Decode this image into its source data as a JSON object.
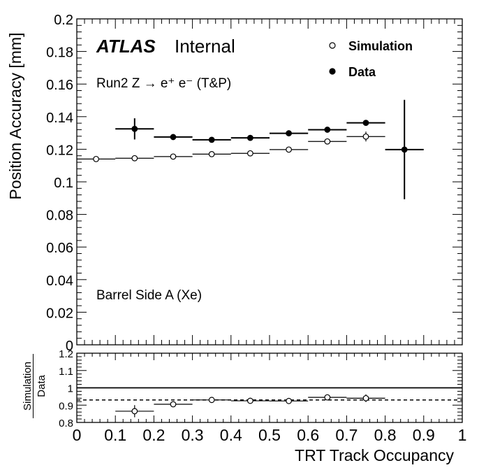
{
  "chart_data": [
    {
      "type": "scatter",
      "panel": "main",
      "xlim": [
        0,
        1
      ],
      "ylim": [
        0,
        0.2
      ],
      "ylabel": "Position Accuracy [mm]",
      "y_ticks": [
        "0",
        "0.02",
        "0.04",
        "0.06",
        "0.08",
        "0.1",
        "0.12",
        "0.14",
        "0.16",
        "0.18",
        "0.2"
      ],
      "labels": {
        "atlas": "ATLAS",
        "internal": "Internal",
        "process": "Run2 Z → e⁺ e⁻ (T&P)",
        "region": "Barrel Side A (Xe)"
      },
      "legend_position": "top-right",
      "series": [
        {
          "name": "Simulation",
          "marker": "open-circle",
          "x": [
            0.05,
            0.15,
            0.25,
            0.35,
            0.45,
            0.55,
            0.65,
            0.75
          ],
          "xerr": [
            0.05,
            0.05,
            0.05,
            0.05,
            0.05,
            0.05,
            0.05,
            0.05
          ],
          "y": [
            0.114,
            0.1145,
            0.1155,
            0.117,
            0.1175,
            0.1198,
            0.1248,
            0.1278
          ],
          "yerr": [
            0.0006,
            0.0006,
            0.0006,
            0.0006,
            0.0006,
            0.0006,
            0.0008,
            0.003
          ]
        },
        {
          "name": "Data",
          "marker": "filled-circle",
          "x": [
            0.15,
            0.25,
            0.35,
            0.45,
            0.55,
            0.65,
            0.75,
            0.85
          ],
          "xerr": [
            0.05,
            0.05,
            0.05,
            0.05,
            0.05,
            0.05,
            0.05,
            0.05
          ],
          "y": [
            0.1325,
            0.1275,
            0.1258,
            0.127,
            0.1298,
            0.132,
            0.1362,
            0.1198
          ],
          "yerr": [
            0.0065,
            0.001,
            0.0008,
            0.0008,
            0.0008,
            0.001,
            0.0015,
            0.0305
          ]
        }
      ]
    },
    {
      "type": "scatter",
      "panel": "ratio",
      "xlim": [
        0,
        1
      ],
      "ylim": [
        0.8,
        1.2
      ],
      "ylabel_numerator": "Simulation",
      "ylabel_denominator": "Data",
      "xlabel": "TRT Track Occupancy",
      "x_ticks": [
        "0",
        "0.1",
        "0.2",
        "0.3",
        "0.4",
        "0.5",
        "0.6",
        "0.7",
        "0.8",
        "0.9",
        "1"
      ],
      "y_ticks": [
        "0.8",
        "0.9",
        "1",
        "1.1",
        "1.2"
      ],
      "reference_line": 1.0,
      "average_line": 0.93,
      "series": [
        {
          "name": "",
          "marker": "open-circle",
          "x": [
            0.15,
            0.25,
            0.35,
            0.45,
            0.55,
            0.65,
            0.75
          ],
          "xerr": [
            0.05,
            0.05,
            0.05,
            0.05,
            0.05,
            0.05,
            0.05
          ],
          "y": [
            0.865,
            0.905,
            0.93,
            0.925,
            0.924,
            0.945,
            0.94
          ],
          "yerr": [
            0.035,
            0.006,
            0.005,
            0.005,
            0.005,
            0.007,
            0.022
          ]
        }
      ]
    }
  ]
}
